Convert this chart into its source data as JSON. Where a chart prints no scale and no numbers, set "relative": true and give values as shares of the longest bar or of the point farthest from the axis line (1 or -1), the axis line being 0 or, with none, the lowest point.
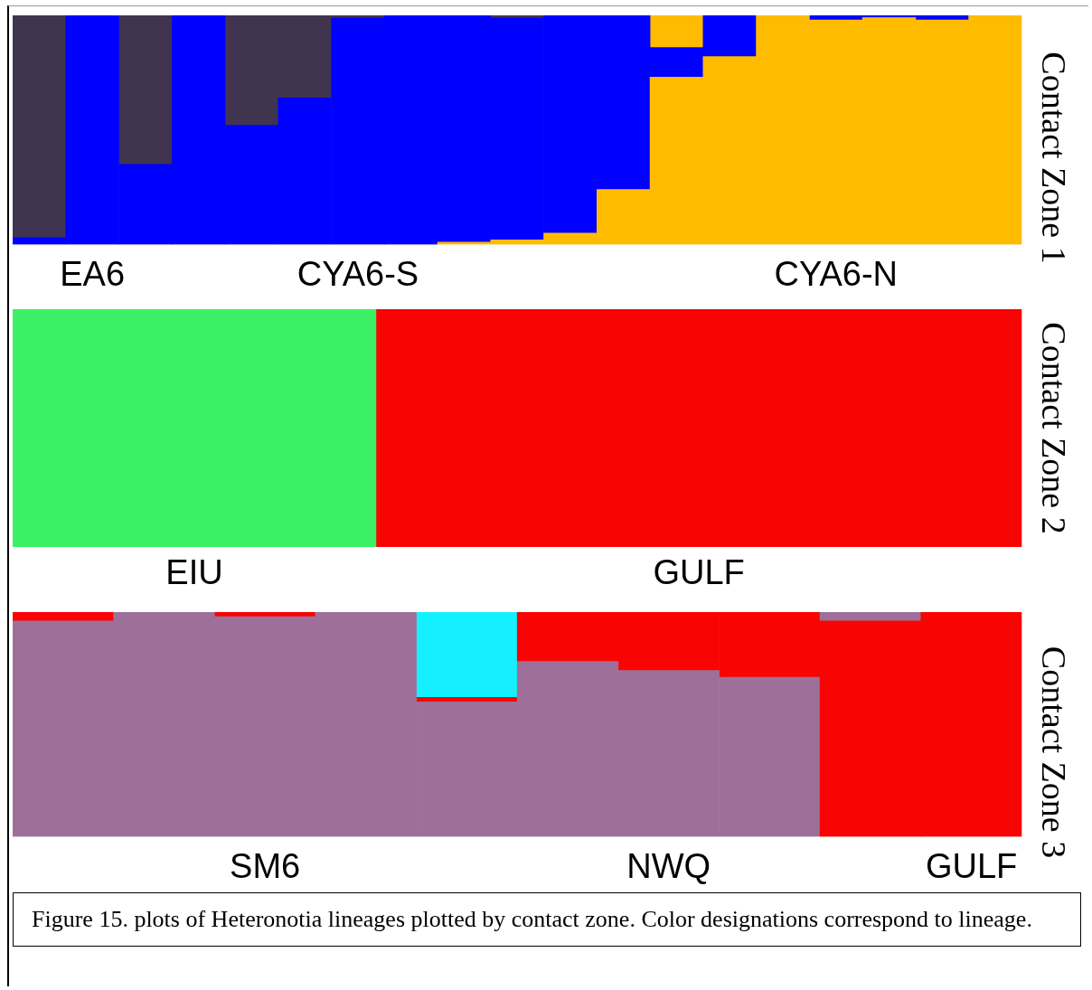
{
  "chart_data": [
    {
      "type": "bar",
      "title": "Contact Zone 1",
      "relative": true,
      "stacked": true,
      "categories": [
        null,
        "EA6",
        null,
        null,
        null,
        null,
        "CYA6-S",
        null,
        null,
        null,
        null,
        null,
        null,
        null,
        null,
        "CYA6-N",
        null,
        null,
        null
      ],
      "series": [
        {
          "color": "#ffbb00",
          "values": [
            null,
            null,
            null,
            null,
            null,
            null,
            null,
            null,
            0.01,
            0.02,
            0.05,
            0.24,
            0.73,
            0.82,
            1,
            0.98,
            0.99,
            0.98,
            1
          ]
        },
        {
          "color": "#0000ff",
          "values": [
            0.03,
            1,
            0.35,
            1,
            0.52,
            0.64,
            0.99,
            1,
            0.99,
            0.97,
            0.95,
            0.76,
            0.13,
            0.18,
            null,
            0.02,
            0.01,
            0.02,
            null
          ]
        },
        {
          "color": "#403450",
          "values": [
            0.97,
            null,
            0.65,
            null,
            0.48,
            0.36,
            0.01,
            null,
            null,
            0.01,
            null,
            null,
            null,
            null,
            null,
            null,
            null,
            null,
            null
          ]
        },
        {
          "color": "#ffbb00",
          "values": [
            null,
            null,
            null,
            null,
            null,
            null,
            null,
            null,
            null,
            null,
            null,
            null,
            0.14,
            null,
            null,
            null,
            null,
            null,
            null
          ]
        }
      ]
    },
    {
      "type": "bar",
      "title": "Contact Zone 2",
      "relative": true,
      "stacked": true,
      "orientation": "horizontal",
      "categories": [
        null
      ],
      "series": [
        {
          "name": "EIU",
          "color": "#3cf065",
          "values": [
            0.36
          ]
        },
        {
          "name": "GULF",
          "color": "#f80503",
          "values": [
            0.64
          ]
        }
      ]
    },
    {
      "type": "bar",
      "title": "Contact Zone 3",
      "relative": true,
      "stacked": true,
      "categories": [
        null,
        null,
        "SM6",
        null,
        null,
        null,
        "NWQ",
        null,
        null,
        "GULF"
      ],
      "series": [
        {
          "color": "#f80503",
          "values": [
            null,
            null,
            null,
            null,
            null,
            null,
            null,
            null,
            0.96,
            1
          ]
        },
        {
          "color": "#9e7099",
          "values": [
            0.96,
            1,
            0.98,
            1,
            0.6,
            0.78,
            0.74,
            0.71,
            0.04,
            null
          ]
        },
        {
          "color": "#f80503",
          "values": [
            0.04,
            null,
            0.02,
            null,
            0.02,
            0.22,
            0.26,
            0.29,
            null,
            null
          ]
        },
        {
          "color": "#14f0ff",
          "values": [
            null,
            null,
            null,
            null,
            0.38,
            null,
            null,
            null,
            null,
            null
          ]
        }
      ],
      "annotations": [
        "Figure 15. plots of Heteronotia lineages plotted by contact zone. Color designations correspond to lineage."
      ]
    }
  ]
}
